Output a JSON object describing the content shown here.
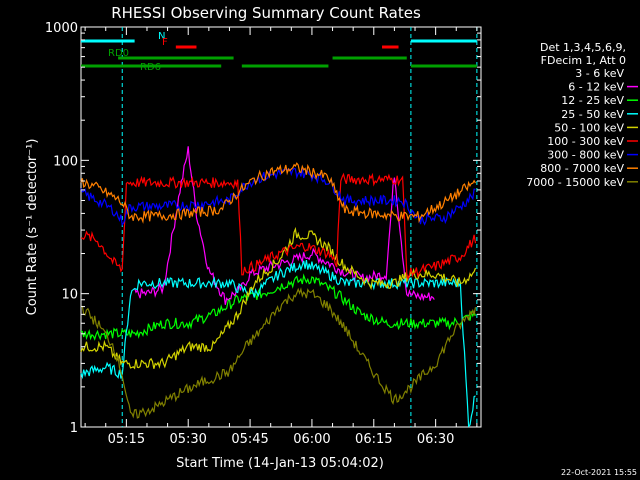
{
  "chart_data": {
    "type": "line",
    "title": "RHESSI Observing Summary Count Rates",
    "ylabel": "Count Rate (s⁻¹ detector⁻¹)",
    "xlabel": "Start Time (14-Jan-13 05:04:02)",
    "yscale": "log",
    "ylim": [
      1,
      1000
    ],
    "yticks": [
      "1",
      "10",
      "100",
      "1000"
    ],
    "xlim": [
      "05:04",
      "06:41"
    ],
    "xticks": [
      "05:15",
      "05:30",
      "05:45",
      "06:00",
      "06:15",
      "06:30"
    ],
    "legend_header": [
      "Det 1,3,4,5,6,9,",
      "FDecim 1, Att 0"
    ],
    "legend_position": "right",
    "series": [
      {
        "name": "3 - 6 keV",
        "color": "#000000",
        "times": [
          "05:04",
          "05:14",
          "05:17",
          "05:20",
          "05:24",
          "05:28",
          "05:31",
          "05:35",
          "05:39",
          "05:42",
          "05:43",
          "05:52",
          "05:56",
          "06:00",
          "06:04",
          "06:06",
          "06:07",
          "06:12",
          "06:18",
          "06:20",
          "06:23",
          "06:26",
          "06:30",
          "06:36",
          "06:40"
        ],
        "values": [
          null,
          null,
          1.5,
          1.4,
          12,
          22,
          20,
          11,
          8,
          5.5,
          null,
          null,
          18,
          20,
          17,
          14,
          12,
          10,
          9,
          16,
          2,
          1.2,
          1.1,
          null,
          null
        ]
      },
      {
        "name": "6 - 12 keV",
        "color": "#ff00ff",
        "times": [
          "05:04",
          "05:14",
          "05:17",
          "05:20",
          "05:24",
          "05:28",
          "05:30",
          "05:32",
          "05:35",
          "05:39",
          "05:43",
          "05:45",
          "05:50",
          "05:56",
          "06:00",
          "06:04",
          "06:07",
          "06:12",
          "06:18",
          "06:20",
          "06:23",
          "06:26",
          "06:30",
          "06:36",
          "06:40"
        ],
        "values": [
          null,
          null,
          10,
          10,
          11,
          60,
          120,
          40,
          15,
          9,
          11,
          14,
          16,
          18,
          20,
          17,
          15,
          13,
          14,
          80,
          10,
          9.5,
          9.5,
          null,
          null
        ]
      },
      {
        "name": "12 - 25 keV",
        "color": "#00ff00",
        "times": [
          "05:04",
          "05:10",
          "05:14",
          "05:17",
          "05:24",
          "05:30",
          "05:36",
          "05:42",
          "05:48",
          "05:54",
          "06:00",
          "06:06",
          "06:12",
          "06:18",
          "06:22",
          "06:28",
          "06:34",
          "06:40"
        ],
        "values": [
          5,
          5,
          5,
          5,
          6,
          6,
          7,
          9,
          10,
          12,
          13,
          10,
          7,
          6,
          6,
          6,
          6,
          7
        ]
      },
      {
        "name": "25 - 50 keV",
        "color": "#00ffff",
        "times": [
          "05:04",
          "05:10",
          "05:14",
          "05:16",
          "05:18",
          "05:24",
          "05:30",
          "05:36",
          "05:40",
          "05:42",
          "05:46",
          "05:52",
          "05:58",
          "06:04",
          "06:08",
          "06:14",
          "06:20",
          "06:22",
          "06:26",
          "06:32",
          "06:36",
          "06:38",
          "06:40"
        ],
        "values": [
          2.5,
          2.8,
          2.5,
          10,
          12,
          12,
          12,
          12,
          12,
          11,
          10,
          14,
          17,
          14,
          12,
          12,
          12,
          12,
          12,
          12,
          12,
          1,
          2
        ]
      },
      {
        "name": "50 - 100 keV",
        "color": "#d2d200",
        "times": [
          "05:04",
          "05:10",
          "05:14",
          "05:17",
          "05:24",
          "05:30",
          "05:36",
          "05:42",
          "05:46",
          "05:52",
          "05:56",
          "06:00",
          "06:04",
          "06:08",
          "06:14",
          "06:20",
          "06:24",
          "06:30",
          "06:36",
          "06:40"
        ],
        "values": [
          4,
          4,
          3,
          3,
          3,
          4,
          4,
          7,
          12,
          18,
          28,
          27,
          22,
          16,
          12,
          12,
          14,
          14,
          12,
          15
        ]
      },
      {
        "name": "100 - 300 keV",
        "color": "#ff0000",
        "times": [
          "05:04",
          "05:08",
          "05:12",
          "05:14",
          "05:15",
          "05:24",
          "05:32",
          "05:40",
          "05:42",
          "05:43",
          "05:46",
          "05:52",
          "05:58",
          "06:04",
          "06:06",
          "06:07",
          "06:12",
          "06:18",
          "06:22",
          "06:23",
          "06:30",
          "06:36",
          "06:40"
        ],
        "values": [
          28,
          25,
          17,
          15,
          68,
          68,
          68,
          68,
          68,
          15,
          16,
          20,
          23,
          20,
          17,
          72,
          72,
          72,
          72,
          14,
          16,
          19,
          27
        ]
      },
      {
        "name": "300 - 800 keV",
        "color": "#0000ff",
        "times": [
          "05:04",
          "05:08",
          "05:12",
          "05:14",
          "05:16",
          "05:20",
          "05:30",
          "05:40",
          "05:43",
          "05:46",
          "05:52",
          "05:56",
          "06:00",
          "06:04",
          "06:08",
          "06:16",
          "06:22",
          "06:26",
          "06:32",
          "06:36",
          "06:40"
        ],
        "values": [
          57,
          50,
          42,
          35,
          45,
          45,
          46,
          50,
          62,
          72,
          80,
          82,
          78,
          70,
          50,
          50,
          50,
          36,
          37,
          45,
          58
        ]
      },
      {
        "name": "800 - 7000 keV",
        "color": "#ff8000",
        "times": [
          "05:04",
          "05:08",
          "05:12",
          "05:14",
          "05:16",
          "05:22",
          "05:30",
          "05:38",
          "05:42",
          "05:46",
          "05:50",
          "05:56",
          "06:00",
          "06:04",
          "06:08",
          "06:14",
          "06:22",
          "06:26",
          "06:32",
          "06:36",
          "06:40"
        ],
        "values": [
          70,
          62,
          53,
          48,
          38,
          38,
          40,
          43,
          57,
          72,
          82,
          88,
          82,
          74,
          42,
          40,
          38,
          38,
          48,
          58,
          70
        ]
      },
      {
        "name": "7000 - 15000 keV",
        "color": "#808000",
        "times": [
          "05:04",
          "05:08",
          "05:12",
          "05:14",
          "05:16",
          "05:22",
          "05:28",
          "05:34",
          "05:40",
          "05:44",
          "05:48",
          "05:52",
          "05:56",
          "06:00",
          "06:04",
          "06:08",
          "06:12",
          "06:16",
          "06:20",
          "06:24",
          "06:30",
          "06:34",
          "06:40"
        ],
        "values": [
          8,
          6,
          4,
          2.5,
          1.2,
          1.4,
          1.8,
          2.2,
          2.6,
          4,
          5.5,
          8,
          10,
          10,
          8,
          5.5,
          3.5,
          2.3,
          1.6,
          2,
          3,
          5,
          8
        ]
      }
    ],
    "flag_bars": [
      {
        "label": "N",
        "color": "#00ffff",
        "segments": [
          [
            "05:04",
            "05:17"
          ],
          [
            "06:24",
            "06:40"
          ]
        ]
      },
      {
        "label": "F",
        "color": "#ff0000",
        "segments": [
          [
            "05:27",
            "05:32"
          ],
          [
            "06:17",
            "06:21"
          ]
        ]
      },
      {
        "label": "RD0",
        "color": "#00a000",
        "segments": [
          [
            "05:13",
            "05:41"
          ],
          [
            "06:05",
            "06:23"
          ]
        ]
      },
      {
        "label": "RD6",
        "color": "#00a000",
        "segments": [
          [
            "05:04",
            "05:38"
          ],
          [
            "05:43",
            "06:04"
          ],
          [
            "06:24",
            "06:40"
          ]
        ]
      }
    ],
    "markers": [
      "05:14",
      "06:24",
      "06:40"
    ]
  },
  "timestamp": "22-Oct-2021 15:55"
}
